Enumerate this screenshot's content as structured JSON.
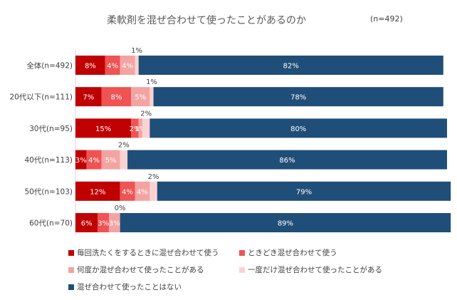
{
  "chart_data": {
    "type": "bar",
    "orientation": "horizontal-stacked",
    "title": "柔軟剤を混ぜ合わせて使ったことがあるのか",
    "subtitle": "(n=492)",
    "categories": [
      "全体(n=492)",
      "20代以下(n=111)",
      "30代(n=95)",
      "40代(n=113)",
      "50代(n=103)",
      "60代(n=70)"
    ],
    "series": [
      {
        "name": "毎回洗たくをするときに混ぜ合わせて使う",
        "color": "#c00000",
        "values": [
          8,
          7,
          15,
          3,
          12,
          6
        ]
      },
      {
        "name": "ときどき混ぜ合わせて使う",
        "color": "#ef5353",
        "values": [
          4,
          8,
          2,
          4,
          4,
          3
        ]
      },
      {
        "name": "何度か混ぜ合わせて使ったことがある",
        "color": "#f4a3a3",
        "values": [
          4,
          5,
          1,
          5,
          4,
          3
        ]
      },
      {
        "name": "一度だけ混ぜ合わせて使ったことがある",
        "color": "#f9d3d3",
        "values": [
          1,
          1,
          2,
          2,
          2,
          0
        ]
      },
      {
        "name": "混ぜ合わせて使ったことはない",
        "color": "#1f4e79",
        "values": [
          82,
          78,
          80,
          86,
          79,
          89
        ]
      }
    ],
    "value_labels": [
      [
        "8%",
        "4%",
        "4%",
        "1%",
        "82%"
      ],
      [
        "7%",
        "8%",
        "5%",
        "1%",
        "78%"
      ],
      [
        "15%",
        "2%",
        "1%",
        "2%",
        "80%"
      ],
      [
        "3%",
        "4%",
        "5%",
        "2%",
        "86%"
      ],
      [
        "12%",
        "4%",
        "4%",
        "2%",
        "79%"
      ],
      [
        "6%",
        "3%",
        "3%",
        "0%",
        "89%"
      ]
    ],
    "xlim": [
      0,
      100
    ],
    "legend_position": "bottom",
    "grid": false
  }
}
